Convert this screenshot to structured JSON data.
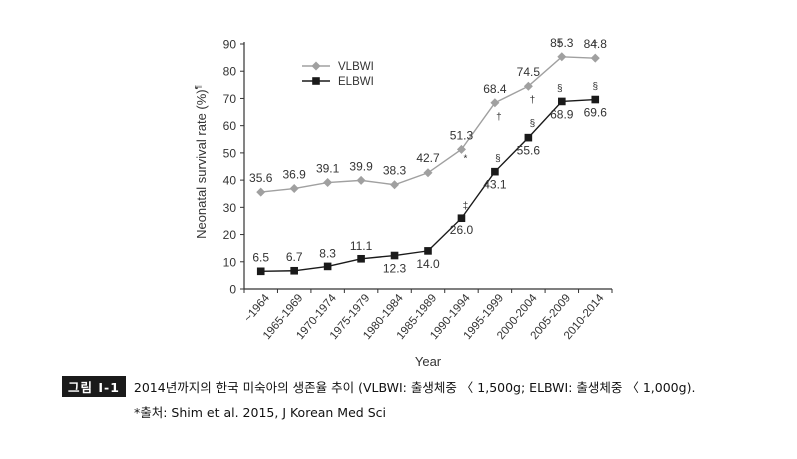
{
  "chart_data": {
    "type": "line",
    "ylabel": "Neonatal survival rate (%)",
    "ylabel_sup": "¶",
    "xlabel": "Year",
    "ylim": [
      0,
      90
    ],
    "yticks": [
      0,
      10,
      20,
      30,
      40,
      50,
      60,
      70,
      80,
      90
    ],
    "categories": [
      "~1964",
      "1965-1969",
      "1970-1974",
      "1975-1979",
      "1980-1984",
      "1985-1989",
      "1990-1994",
      "1995-1999",
      "2000-2004",
      "2005-2009",
      "2010-2014"
    ],
    "series": [
      {
        "name": "VLBWI",
        "marker": "diamond",
        "color": "#a0a0a0",
        "values": [
          35.6,
          36.9,
          39.1,
          39.9,
          38.3,
          42.7,
          51.3,
          68.4,
          74.5,
          85.3,
          84.8
        ],
        "labels": [
          "35.6",
          "36.9",
          "39.1",
          "39.9",
          "38.3",
          "42.7",
          "51.3",
          "68.4",
          "74.5",
          "85.3",
          "84.8"
        ],
        "marks": [
          "",
          "",
          "",
          "",
          "",
          "",
          "*",
          "†",
          "†",
          "†",
          "†"
        ]
      },
      {
        "name": "ELBWI",
        "marker": "square",
        "color": "#1a1a1a",
        "values": [
          6.5,
          6.7,
          8.3,
          11.1,
          12.3,
          14.0,
          26.0,
          43.1,
          55.6,
          68.9,
          69.6
        ],
        "labels": [
          "6.5",
          "6.7",
          "8.3",
          "11.1",
          "12.3",
          "14.0",
          "26.0",
          "43.1",
          "55.6",
          "68.9",
          "69.6"
        ],
        "marks": [
          "",
          "",
          "",
          "",
          "",
          "",
          "‡",
          "§",
          "§",
          "§",
          "§"
        ]
      }
    ],
    "legend_position": "top-left"
  },
  "caption": {
    "badge": "그림 Ⅰ-1",
    "text": "2014년까지의 한국 미숙아의 생존율 추이 (VLBWI: 출생체중 〈 1,500g; ELBWI: 출생체중 〈 1,000g).",
    "source": "*출처: Shim et al. 2015, J Korean Med Sci"
  }
}
